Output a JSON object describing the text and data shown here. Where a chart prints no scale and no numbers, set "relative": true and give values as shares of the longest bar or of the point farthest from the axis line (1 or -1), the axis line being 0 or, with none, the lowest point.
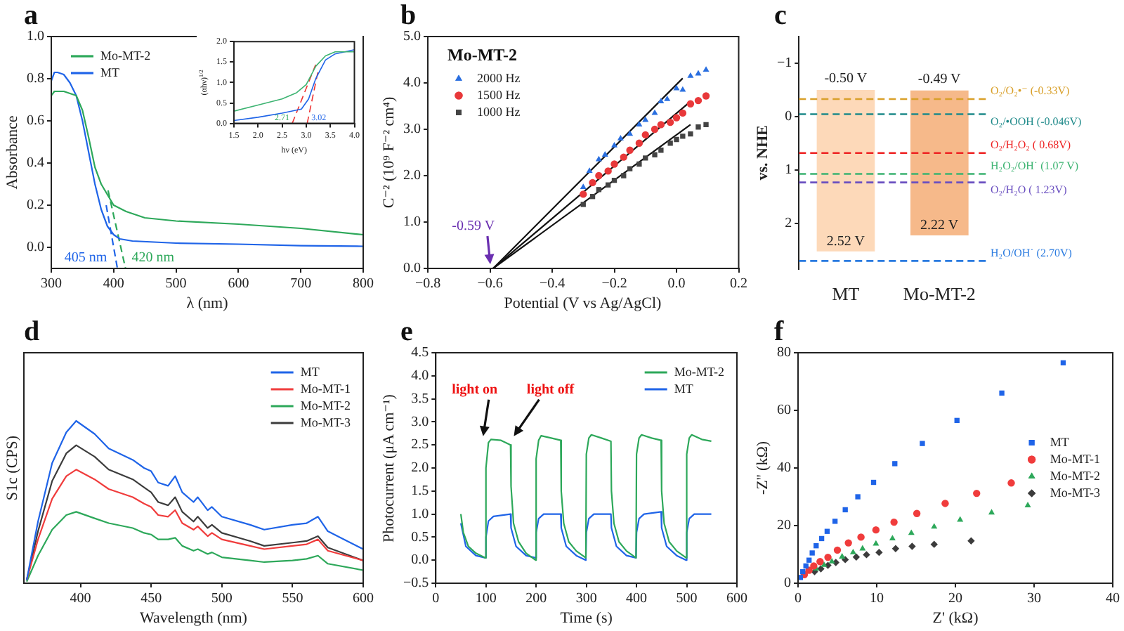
{
  "chart_data": [
    {
      "type": "line",
      "title": "a",
      "xlabel": "λ (nm)",
      "ylabel": "Absorbance",
      "xlim": [
        300,
        800
      ],
      "xticks": [
        300,
        400,
        500,
        600,
        700,
        800
      ],
      "ylim": [
        -0.1,
        1.0
      ],
      "yticks": [
        {
          "value": 0,
          "label": "0.0"
        },
        0.2,
        0.4,
        0.6,
        0.8,
        {
          "value": 1,
          "label": "1.0"
        }
      ],
      "legend": "top left",
      "series": [
        {
          "name": "Mo-MT-2",
          "color": "#2da85a",
          "x": [
            300,
            305,
            320,
            340,
            350,
            360,
            370,
            380,
            390,
            400,
            420,
            450,
            500,
            600,
            700,
            800
          ],
          "values": [
            0.72,
            0.74,
            0.74,
            0.72,
            0.65,
            0.52,
            0.38,
            0.3,
            0.25,
            0.2,
            0.17,
            0.14,
            0.125,
            0.11,
            0.09,
            0.06
          ]
        },
        {
          "name": "MT",
          "color": "#1f64e8",
          "x": [
            300,
            305,
            310,
            320,
            330,
            340,
            350,
            360,
            370,
            380,
            390,
            400,
            410,
            430,
            500,
            600,
            700,
            800
          ],
          "values": [
            0.79,
            0.83,
            0.83,
            0.82,
            0.78,
            0.72,
            0.6,
            0.45,
            0.3,
            0.18,
            0.1,
            0.06,
            0.04,
            0.03,
            0.02,
            0.015,
            0.008,
            0.005
          ]
        },
        {
          "color": "#2da85a",
          "line_style": "dashed",
          "x": [
            391,
            419
          ],
          "values": [
            0.27,
            -0.1
          ]
        },
        {
          "color": "#1f64e8",
          "line_style": "dashed",
          "x": [
            388,
            406
          ],
          "values": [
            0.2,
            -0.1
          ]
        }
      ],
      "annotations": [
        {
          "text": "405 nm",
          "x": 405,
          "y": -0.05
        },
        {
          "text": "420 nm",
          "x": 420,
          "y": -0.05
        }
      ]
    },
    {
      "type": "line",
      "xlabel": "hν (eV)",
      "ylabel": "(αhν)$^{1/2}$",
      "xlim": [
        1.5,
        4.0
      ],
      "xticks": [
        1.5,
        {
          "value": 2,
          "label": "2.0"
        },
        2.5,
        {
          "value": 3,
          "label": "3.0"
        },
        3.5,
        {
          "value": 4,
          "label": "4.0"
        }
      ],
      "ylim": [
        0,
        2.0
      ],
      "yticks": [
        {
          "value": 0,
          "label": "0.0"
        },
        0.5,
        {
          "value": 1,
          "label": "1.0"
        },
        1.5,
        {
          "value": 2,
          "label": "2.0"
        }
      ],
      "series": [
        {
          "color": "#3cb371",
          "x": [
            1.5,
            2.0,
            2.5,
            2.8,
            3.0,
            3.2,
            3.4,
            3.6,
            4.0
          ],
          "values": [
            0.3,
            0.45,
            0.6,
            0.75,
            0.95,
            1.4,
            1.65,
            1.75,
            1.75
          ]
        },
        {
          "color": "#1f64e8",
          "x": [
            1.5,
            2.0,
            2.5,
            2.9,
            3.05,
            3.2,
            3.4,
            3.6,
            4.0
          ],
          "values": [
            0.07,
            0.15,
            0.25,
            0.35,
            0.6,
            1.1,
            1.55,
            1.7,
            1.8
          ]
        },
        {
          "color": "#ee3333",
          "line_style": "dashed",
          "x": [
            2.71,
            3.2
          ],
          "values": [
            0,
            1.45
          ]
        },
        {
          "color": "#ee3333",
          "line_style": "dashed",
          "x": [
            3.02,
            3.25
          ],
          "values": [
            0,
            1.3
          ]
        }
      ],
      "annotations": [
        {
          "text": "2.71",
          "x": 2.71,
          "y": 0
        },
        {
          "text": "3.02",
          "x": 3.02,
          "y": 0
        }
      ]
    },
    {
      "type": "scatter",
      "title": "b",
      "xlabel": "Potential (V vs Ag/AgCl)",
      "ylabel": "C⁻² (10⁹ F⁻² cm⁴)",
      "legend_title": "Mo-MT-2",
      "legend": "top left",
      "xlim": [
        -0.8,
        0.2
      ],
      "xticks": [
        {
          "value": -0.8,
          "label": "−0.8"
        },
        {
          "value": -0.6,
          "label": "−0.6"
        },
        {
          "value": -0.4,
          "label": "−0.4"
        },
        {
          "value": -0.2,
          "label": "−0.2"
        },
        {
          "value": 0,
          "label": "0.0"
        },
        0.2
      ],
      "ylim": [
        0,
        5
      ],
      "yticks": [
        {
          "value": 0,
          "label": "0.0"
        },
        {
          "value": 1,
          "label": "1.0"
        },
        {
          "value": 2,
          "label": "2.0"
        },
        {
          "value": 3,
          "label": "3.0"
        },
        {
          "value": 4,
          "label": "4.0"
        },
        {
          "value": 5,
          "label": "5.0"
        }
      ],
      "series": [
        {
          "name": "2000 Hz",
          "color": "#2a6fe0",
          "marker": "triangle",
          "x": [
            -0.3,
            -0.28,
            -0.25,
            -0.23,
            -0.2,
            -0.18,
            -0.15,
            -0.12,
            -0.1,
            -0.07,
            -0.05,
            -0.03,
            0.0,
            0.02,
            0.045,
            0.07,
            0.095
          ],
          "values": [
            1.75,
            2.1,
            2.35,
            2.45,
            2.65,
            2.8,
            2.9,
            3.1,
            3.2,
            3.35,
            3.6,
            3.65,
            3.88,
            3.85,
            4.15,
            4.2,
            4.28
          ]
        },
        {
          "name": "1500 Hz",
          "color": "#e8383a",
          "marker": "circle",
          "x": [
            -0.3,
            -0.27,
            -0.25,
            -0.22,
            -0.2,
            -0.17,
            -0.15,
            -0.12,
            -0.1,
            -0.07,
            -0.05,
            -0.02,
            0.0,
            0.02,
            0.045,
            0.07,
            0.095
          ],
          "values": [
            1.6,
            1.85,
            2.0,
            2.1,
            2.25,
            2.4,
            2.55,
            2.7,
            2.88,
            3.0,
            3.1,
            3.15,
            3.25,
            3.35,
            3.55,
            3.62,
            3.72
          ]
        },
        {
          "name": "1000 Hz",
          "color": "#444444",
          "marker": "square",
          "x": [
            -0.3,
            -0.27,
            -0.25,
            -0.22,
            -0.2,
            -0.17,
            -0.15,
            -0.12,
            -0.1,
            -0.07,
            -0.05,
            -0.02,
            0.0,
            0.02,
            0.045,
            0.07,
            0.095
          ],
          "values": [
            1.38,
            1.55,
            1.7,
            1.8,
            1.9,
            2.0,
            2.15,
            2.25,
            2.38,
            2.45,
            2.55,
            2.7,
            2.78,
            2.85,
            2.9,
            3.05,
            3.1
          ]
        },
        {
          "type": "line",
          "color": "#111111",
          "x": [
            -0.59,
            0.02
          ],
          "values": [
            0,
            4.1
          ]
        },
        {
          "type": "line",
          "color": "#111111",
          "x": [
            -0.59,
            0.045
          ],
          "values": [
            0,
            3.6
          ]
        },
        {
          "type": "line",
          "color": "#111111",
          "x": [
            -0.59,
            0.045
          ],
          "values": [
            0,
            3.1
          ]
        }
      ],
      "annotations": [
        {
          "text": "-0.59 V",
          "x": -0.59,
          "y": 0
        }
      ]
    },
    {
      "type": "bar",
      "title": "c",
      "ylabel": "vs. NHE",
      "categories": [
        "MT",
        "Mo-MT-2"
      ],
      "values": [
        3.02,
        2.71
      ],
      "base": [
        -0.5,
        -0.49
      ],
      "colors": [
        "#fdd9b9",
        "#f6b98a"
      ],
      "ylim": [
        2.85,
        -1.5
      ],
      "yticks": [
        {
          "value": -1,
          "label": "−1"
        },
        0,
        1,
        2
      ],
      "ref_lines": [
        {
          "axis": "y",
          "value": -0.33,
          "label": "O₂/O₂•⁻ (-0.33V)",
          "color": "#d9a02a",
          "line_style": "dashed"
        },
        {
          "axis": "y",
          "value": -0.046,
          "label": "O₂/•OOH (-0.046V)",
          "color": "#1f8a8a",
          "line_style": "dashed"
        },
        {
          "axis": "y",
          "value": 0.68,
          "label": "O₂/H₂O₂ ( 0.68V)",
          "color": "#ee2222",
          "line_style": "dashed"
        },
        {
          "axis": "y",
          "value": 1.07,
          "label": "H₂O₂/OH˙ (1.07 V)",
          "color": "#3cb371",
          "line_style": "dashed"
        },
        {
          "axis": "y",
          "value": 1.23,
          "label": "O₂/H₂O ( 1.23V)",
          "color": "#6a4fc0",
          "line_style": "dashed"
        },
        {
          "axis": "y",
          "value": 2.7,
          "label": "H₂O/OH˙ (2.70V)",
          "color": "#2a7be0",
          "line_style": "dashed"
        }
      ],
      "annotations": [
        {
          "text": "-0.50 V",
          "x": "MT",
          "y": -0.5
        },
        {
          "text": "2.52 V",
          "x": "MT",
          "y": 2.52
        },
        {
          "text": "-0.49 V",
          "x": "Mo-MT-2",
          "y": -0.49
        },
        {
          "text": "2.22 V",
          "x": "Mo-MT-2",
          "y": 2.22
        }
      ]
    },
    {
      "type": "line",
      "title": "d",
      "xlabel": "Wavelength (nm)",
      "ylabel": "S1c (CPS)",
      "relative": true,
      "legend": "top right",
      "xlim": [
        360,
        600
      ],
      "xticks": [
        400,
        450,
        500,
        550,
        600
      ],
      "x": [
        362,
        370,
        380,
        390,
        397,
        410,
        420,
        437,
        445,
        450,
        455,
        462,
        467,
        472,
        480,
        483,
        490,
        493,
        500,
        520,
        530,
        550,
        560,
        568,
        575,
        600
      ],
      "series": [
        {
          "name": "MT",
          "color": "#1f64e8",
          "values": [
            0.02,
            0.38,
            0.74,
            0.93,
            1,
            0.92,
            0.83,
            0.76,
            0.71,
            0.69,
            0.62,
            0.6,
            0.66,
            0.56,
            0.5,
            0.53,
            0.45,
            0.47,
            0.41,
            0.36,
            0.33,
            0.36,
            0.37,
            0.41,
            0.32,
            0.21
          ]
        },
        {
          "name": "Mo-MT-1",
          "color": "#f03c3c",
          "values": [
            0.02,
            0.27,
            0.52,
            0.66,
            0.7,
            0.64,
            0.58,
            0.53,
            0.49,
            0.47,
            0.42,
            0.41,
            0.45,
            0.37,
            0.33,
            0.35,
            0.29,
            0.31,
            0.27,
            0.23,
            0.21,
            0.23,
            0.24,
            0.27,
            0.2,
            0.14
          ]
        },
        {
          "name": "Mo-MT-2",
          "color": "#2da85a",
          "values": [
            0.01,
            0.17,
            0.33,
            0.42,
            0.44,
            0.4,
            0.37,
            0.34,
            0.31,
            0.3,
            0.27,
            0.27,
            0.28,
            0.23,
            0.2,
            0.21,
            0.18,
            0.19,
            0.16,
            0.14,
            0.13,
            0.14,
            0.15,
            0.17,
            0.12,
            0.08
          ]
        },
        {
          "name": "Mo-MT-3",
          "color": "#3c3c3c",
          "values": [
            0.02,
            0.32,
            0.63,
            0.8,
            0.85,
            0.78,
            0.7,
            0.64,
            0.59,
            0.56,
            0.5,
            0.48,
            0.53,
            0.44,
            0.38,
            0.41,
            0.34,
            0.36,
            0.31,
            0.26,
            0.23,
            0.25,
            0.26,
            0.29,
            0.22,
            0.14
          ]
        }
      ]
    },
    {
      "type": "line",
      "title": "e",
      "xlabel": "Time (s)",
      "ylabel": "Photocurrent (μA cm⁻¹)",
      "legend": "top right",
      "xlim": [
        0,
        600
      ],
      "xticks": [
        0,
        100,
        200,
        300,
        400,
        500,
        600
      ],
      "ylim": [
        -0.5,
        4.5
      ],
      "yticks": [
        {
          "value": -0.5,
          "label": "−0.5"
        },
        {
          "value": 0,
          "label": "0.0"
        },
        0.5,
        {
          "value": 1,
          "label": "1.0"
        },
        1.5,
        {
          "value": 2,
          "label": "2.0"
        },
        2.5,
        {
          "value": 3,
          "label": "3.0"
        },
        3.5,
        {
          "value": 4,
          "label": "4.0"
        },
        4.5
      ],
      "series": [
        {
          "name": "Mo-MT-2",
          "color": "#2da85a",
          "x": [
            50,
            55,
            65,
            80,
            99,
            100,
            105,
            110,
            130,
            149,
            150,
            155,
            165,
            180,
            199,
            200,
            205,
            210,
            230,
            249,
            250,
            255,
            265,
            280,
            299,
            300,
            305,
            310,
            330,
            349,
            350,
            355,
            365,
            380,
            399,
            400,
            405,
            410,
            430,
            449,
            450,
            455,
            465,
            480,
            499,
            500,
            505,
            510,
            530,
            549
          ],
          "values": [
            1.0,
            0.6,
            0.3,
            0.15,
            0.05,
            2.0,
            2.55,
            2.62,
            2.6,
            2.5,
            1.6,
            0.8,
            0.4,
            0.15,
            0.0,
            2.2,
            2.6,
            2.7,
            2.65,
            2.6,
            1.5,
            0.8,
            0.4,
            0.2,
            0.05,
            2.3,
            2.65,
            2.72,
            2.65,
            2.58,
            1.5,
            0.8,
            0.4,
            0.2,
            0.05,
            2.3,
            2.65,
            2.72,
            2.65,
            2.6,
            1.5,
            0.8,
            0.4,
            0.2,
            0.05,
            2.3,
            2.65,
            2.72,
            2.62,
            2.58
          ]
        },
        {
          "name": "MT",
          "color": "#1f64e8",
          "x": [
            50,
            60,
            80,
            99,
            100,
            105,
            115,
            149,
            150,
            160,
            180,
            199,
            200,
            205,
            215,
            249,
            250,
            260,
            280,
            299,
            300,
            305,
            315,
            349,
            350,
            360,
            380,
            399,
            400,
            405,
            415,
            449,
            450,
            460,
            480,
            499,
            500,
            505,
            515,
            549
          ],
          "values": [
            0.8,
            0.3,
            0.1,
            0.05,
            0.5,
            0.85,
            0.95,
            1.0,
            0.7,
            0.3,
            0.1,
            0.05,
            0.6,
            0.9,
            1.0,
            1.0,
            0.7,
            0.3,
            0.1,
            0.0,
            0.6,
            0.9,
            1.0,
            1.0,
            0.7,
            0.3,
            0.1,
            0.05,
            0.6,
            0.9,
            1.0,
            1.05,
            0.7,
            0.3,
            0.1,
            0.0,
            0.6,
            0.9,
            1.0,
            1.0
          ]
        }
      ],
      "annotations": [
        {
          "text": "light on",
          "x": 100,
          "y": 2.6
        },
        {
          "text": "light off",
          "x": 150,
          "y": 2.6
        }
      ]
    },
    {
      "type": "scatter",
      "title": "f",
      "xlabel": "Z' (kΩ)",
      "ylabel": "-Z'' (kΩ)",
      "legend": "right",
      "xlim": [
        0,
        40
      ],
      "xticks": [
        0,
        10,
        20,
        30,
        40
      ],
      "ylim": [
        0,
        80
      ],
      "yticks": [
        0,
        20,
        40,
        60,
        80
      ],
      "series": [
        {
          "name": "MT",
          "color": "#1f64e8",
          "marker": "square",
          "x": [
            0.3,
            0.6,
            1,
            1.4,
            1.8,
            2.3,
            3,
            3.7,
            4.7,
            6,
            7.6,
            9.6,
            12.3,
            15.8,
            20.2,
            25.9,
            33.7
          ],
          "values": [
            2,
            4,
            6,
            8,
            10.5,
            13,
            15.5,
            18,
            21.5,
            25.5,
            30,
            35,
            41.5,
            48.5,
            56.5,
            66,
            76.5
          ]
        },
        {
          "name": "Mo-MT-1",
          "color": "#f03c3c",
          "marker": "circle",
          "x": [
            0.8,
            1.4,
            2,
            2.8,
            3.8,
            5,
            6.4,
            8,
            9.9,
            12.2,
            15.1,
            18.7,
            22.7,
            27.1
          ],
          "values": [
            3,
            4.5,
            6,
            7.5,
            9,
            11.5,
            14,
            16,
            18.5,
            21.2,
            24.2,
            27.7,
            31.2,
            34.8
          ]
        },
        {
          "name": "Mo-MT-2",
          "color": "#2da85a",
          "marker": "triangle",
          "x": [
            2.3,
            3.3,
            4.3,
            5.6,
            7,
            8.2,
            9.9,
            12,
            14.4,
            17.3,
            20.6,
            24.6,
            29.2
          ],
          "values": [
            5,
            6.3,
            7.5,
            9.2,
            10.7,
            12,
            13.7,
            15.5,
            17.4,
            19.6,
            22,
            24.5,
            27
          ]
        },
        {
          "name": "Mo-MT-3",
          "color": "#3c3c3c",
          "marker": "diamond",
          "x": [
            2.1,
            2.9,
            3.8,
            4.8,
            6,
            7.4,
            8.7,
            10.3,
            12.4,
            14.5,
            17.3,
            22
          ],
          "values": [
            4,
            5,
            6.2,
            7.2,
            8.2,
            9.1,
            9.9,
            10.7,
            12,
            12.8,
            13.5,
            14.7
          ]
        }
      ]
    }
  ]
}
